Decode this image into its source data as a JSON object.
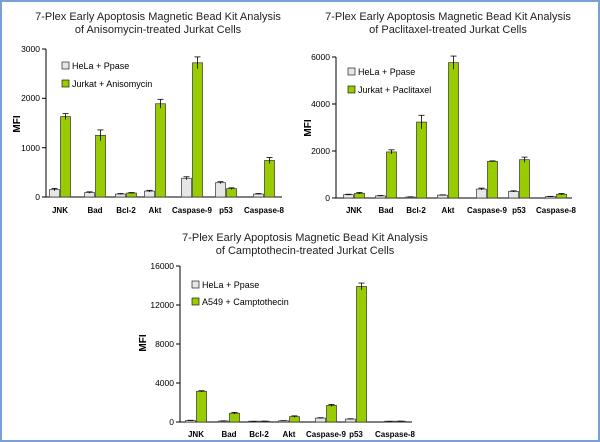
{
  "charts": {
    "anisomycin": {
      "title1": "7-Plex Early Apoptosis Magnetic Bead Kit Analysis",
      "title2": "of Anisomycin-treated Jurkat Cells",
      "ylabel": "MFI",
      "ticks": [
        "0",
        "1000",
        "2000",
        "3000"
      ],
      "categories": [
        "JNK",
        "Bad",
        "Bcl-2",
        "Akt",
        "Caspase-9",
        "p53",
        "Caspase-8"
      ],
      "legend": [
        "HeLa + Ppase",
        "Jurkat + Anisomycin"
      ]
    },
    "paclitaxel": {
      "title1": "7-Plex Early Apoptosis Magnetic Bead Kit Analysis",
      "title2": "of Paclitaxel-treated Jurkat Cells",
      "ylabel": "MFI",
      "ticks": [
        "0",
        "2000",
        "4000",
        "6000"
      ],
      "categories": [
        "JNK",
        "Bad",
        "Bcl-2",
        "Akt",
        "Caspase-9",
        "p53",
        "Caspase-8"
      ],
      "legend": [
        "HeLa + Ppase",
        "Jurkat + Paclitaxel"
      ]
    },
    "camptothecin": {
      "title1": "7-Plex Early Apoptosis Magnetic Bead Kit Analysis",
      "title2": "of Camptothecin-treated Jurkat Cells",
      "ylabel": "MFI",
      "ticks": [
        "0",
        "4000",
        "8000",
        "12000",
        "16000"
      ],
      "categories": [
        "JNK",
        "Bad",
        "Bcl-2",
        "Akt",
        "Caspase-9",
        "p53",
        "Caspase-8"
      ],
      "legend": [
        "HeLa + Ppase",
        "A549 + Camptothecin"
      ]
    }
  },
  "chart_data": [
    {
      "type": "bar",
      "title": "7-Plex Early Apoptosis Magnetic Bead Kit Analysis of Anisomycin-treated Jurkat Cells",
      "ylabel": "MFI",
      "ylim": [
        0,
        3000
      ],
      "categories": [
        "JNK",
        "Bad",
        "Bcl-2",
        "Akt",
        "Caspase-9",
        "p53",
        "Caspase-8"
      ],
      "series": [
        {
          "name": "HeLa + Ppase",
          "color": "#e6e6e6",
          "values": [
            150,
            90,
            60,
            120,
            380,
            290,
            60
          ],
          "errors": [
            25,
            15,
            10,
            15,
            30,
            20,
            10
          ]
        },
        {
          "name": "Jurkat + Anisomycin",
          "color": "#99cc00",
          "values": [
            1630,
            1250,
            80,
            1890,
            2720,
            170,
            740
          ],
          "errors": [
            60,
            110,
            10,
            90,
            120,
            15,
            60
          ]
        }
      ]
    },
    {
      "type": "bar",
      "title": "7-Plex Early Apoptosis Magnetic Bead Kit Analysis of Paclitaxel-treated Jurkat Cells",
      "ylabel": "MFI",
      "ylim": [
        0,
        6000
      ],
      "categories": [
        "JNK",
        "Bad",
        "Bcl-2",
        "Akt",
        "Caspase-9",
        "p53",
        "Caspase-8"
      ],
      "series": [
        {
          "name": "HeLa + Ppase",
          "color": "#e6e6e6",
          "values": [
            140,
            90,
            40,
            120,
            380,
            280,
            60
          ],
          "errors": [
            20,
            15,
            10,
            15,
            40,
            25,
            10
          ]
        },
        {
          "name": "Jurkat + Paclitaxel",
          "color": "#99cc00",
          "values": [
            200,
            1960,
            3230,
            5760,
            1560,
            1630,
            160
          ],
          "errors": [
            30,
            90,
            290,
            280,
            20,
            110,
            30
          ]
        }
      ]
    },
    {
      "type": "bar",
      "title": "7-Plex Early Apoptosis Magnetic Bead Kit Analysis of Camptothecin-treated Jurkat Cells",
      "ylabel": "MFI",
      "ylim": [
        0,
        16000
      ],
      "categories": [
        "JNK",
        "Bad",
        "Bcl-2",
        "Akt",
        "Caspase-9",
        "p53",
        "Caspase-8"
      ],
      "series": [
        {
          "name": "HeLa + Ppase",
          "color": "#e6e6e6",
          "values": [
            150,
            100,
            60,
            120,
            400,
            300,
            60
          ],
          "errors": [
            30,
            20,
            10,
            20,
            40,
            30,
            10
          ]
        },
        {
          "name": "A549 + Camptothecin",
          "color": "#99cc00",
          "values": [
            3150,
            900,
            80,
            550,
            1700,
            13900,
            80
          ],
          "errors": [
            60,
            80,
            10,
            80,
            100,
            350,
            10
          ]
        }
      ]
    }
  ]
}
